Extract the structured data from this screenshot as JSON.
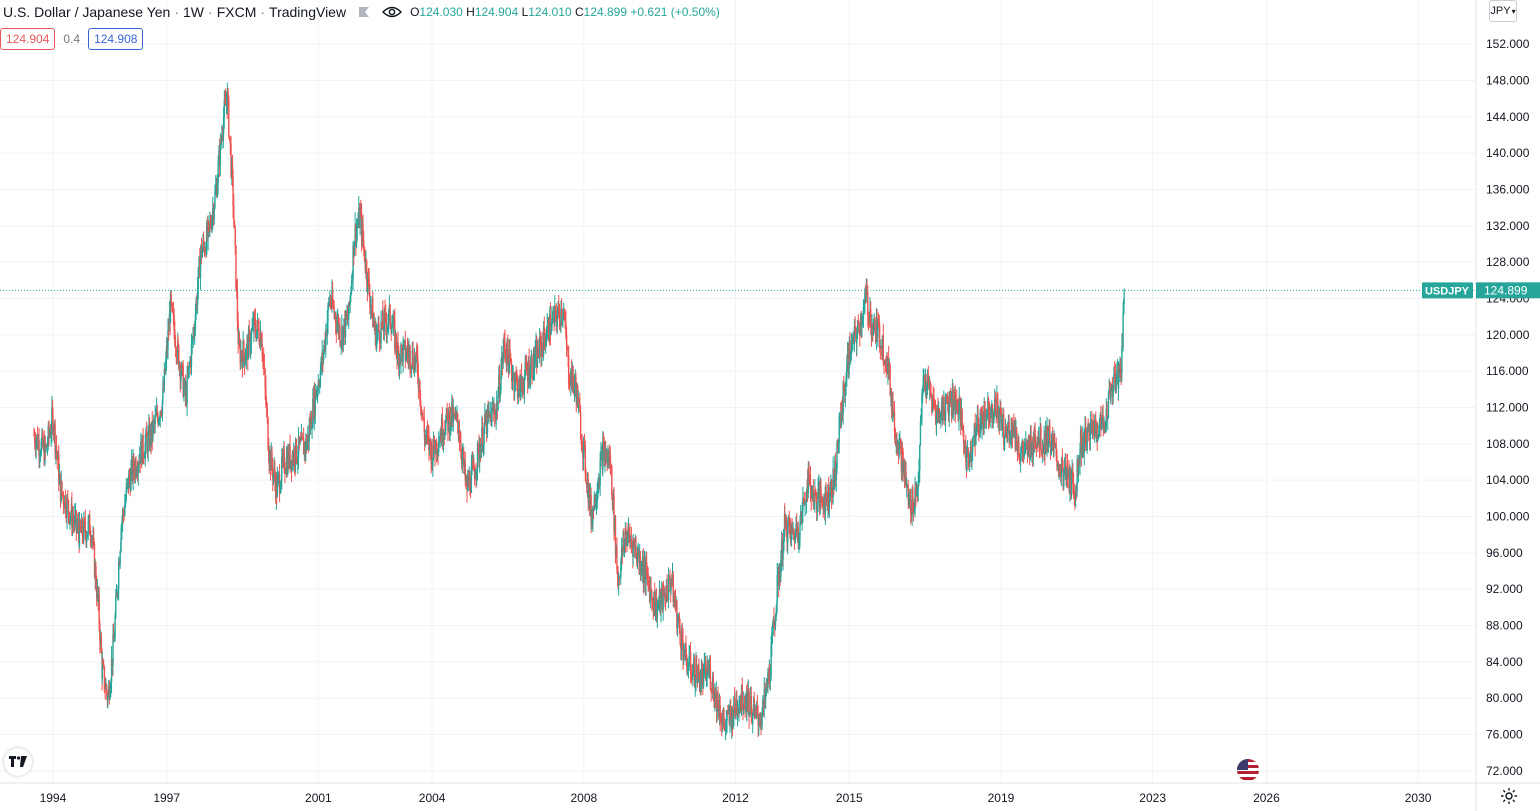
{
  "header": {
    "symbol": "U.S. Dollar / Japanese Yen",
    "interval": "1W",
    "exchange": "FXCM",
    "source": "TradingView",
    "ohlc": {
      "open_label": "O",
      "open": "124.030",
      "high_label": "H",
      "high": "124.904",
      "low_label": "L",
      "low": "124.010",
      "close_label": "C",
      "close": "124.899",
      "change": "+0.621 (+0.50%)"
    }
  },
  "quote": {
    "bid": "124.904",
    "spread": "0.4",
    "ask": "124.908"
  },
  "currency": "JPY",
  "last_price_tag": {
    "symbol": "USDJPY",
    "price": "124.899"
  },
  "colors": {
    "up": "#26a69a",
    "down": "#ef5350",
    "grid": "#f0f3fa",
    "tag_bg": "#26a69a"
  },
  "chart_data": {
    "type": "candlestick",
    "title": "U.S. Dollar / Japanese Yen",
    "interval": "1W",
    "x_ticks": [
      "1994",
      "1997",
      "2001",
      "2004",
      "2008",
      "2012",
      "2015",
      "2019",
      "2023",
      "2026",
      "2030"
    ],
    "y_ticks": [
      "72.000",
      "76.000",
      "80.000",
      "84.000",
      "88.000",
      "92.000",
      "96.000",
      "100.000",
      "104.000",
      "108.000",
      "112.000",
      "116.000",
      "120.000",
      "124.000",
      "128.000",
      "132.000",
      "136.000",
      "140.000",
      "144.000",
      "148.000",
      "152.000"
    ],
    "ylim": [
      70,
      154
    ],
    "xlim": [
      1993.0,
      2031.5
    ],
    "last_price": 124.899,
    "grid": true,
    "series": [
      {
        "name": "USDJPY",
        "points": [
          [
            1993.5,
            109
          ],
          [
            1993.8,
            107
          ],
          [
            1994.0,
            111
          ],
          [
            1994.2,
            103
          ],
          [
            1994.5,
            100
          ],
          [
            1994.7,
            98
          ],
          [
            1995.0,
            99
          ],
          [
            1995.2,
            90
          ],
          [
            1995.3,
            83
          ],
          [
            1995.45,
            80
          ],
          [
            1995.6,
            86
          ],
          [
            1995.8,
            99
          ],
          [
            1996.0,
            104
          ],
          [
            1996.3,
            107
          ],
          [
            1996.6,
            109
          ],
          [
            1996.9,
            113
          ],
          [
            1997.1,
            123
          ],
          [
            1997.3,
            118
          ],
          [
            1997.5,
            113
          ],
          [
            1997.7,
            120
          ],
          [
            1997.9,
            129
          ],
          [
            1998.1,
            131
          ],
          [
            1998.3,
            136
          ],
          [
            1998.5,
            144
          ],
          [
            1998.6,
            146
          ],
          [
            1998.75,
            135
          ],
          [
            1998.9,
            118
          ],
          [
            1999.1,
            118
          ],
          [
            1999.3,
            121
          ],
          [
            1999.5,
            120
          ],
          [
            1999.7,
            107
          ],
          [
            1999.9,
            103
          ],
          [
            2000.1,
            106
          ],
          [
            2000.4,
            107
          ],
          [
            2000.7,
            108
          ],
          [
            2000.9,
            113
          ],
          [
            2001.1,
            117
          ],
          [
            2001.3,
            124
          ],
          [
            2001.6,
            120
          ],
          [
            2001.8,
            122
          ],
          [
            2001.95,
            131
          ],
          [
            2002.1,
            133
          ],
          [
            2002.3,
            126
          ],
          [
            2002.5,
            120
          ],
          [
            2002.7,
            121
          ],
          [
            2002.9,
            122
          ],
          [
            2003.1,
            118
          ],
          [
            2003.4,
            118
          ],
          [
            2003.6,
            117
          ],
          [
            2003.8,
            109
          ],
          [
            2004.0,
            107
          ],
          [
            2004.3,
            110
          ],
          [
            2004.5,
            111
          ],
          [
            2004.7,
            110
          ],
          [
            2004.9,
            103
          ],
          [
            2005.1,
            105
          ],
          [
            2005.4,
            110
          ],
          [
            2005.7,
            112
          ],
          [
            2005.9,
            119
          ],
          [
            2006.1,
            116
          ],
          [
            2006.3,
            114
          ],
          [
            2006.5,
            116
          ],
          [
            2006.7,
            117
          ],
          [
            2006.9,
            119
          ],
          [
            2007.1,
            121
          ],
          [
            2007.3,
            122
          ],
          [
            2007.45,
            123
          ],
          [
            2007.6,
            116
          ],
          [
            2007.8,
            114
          ],
          [
            2008.0,
            107
          ],
          [
            2008.2,
            100
          ],
          [
            2008.5,
            107
          ],
          [
            2008.7,
            106
          ],
          [
            2008.9,
            93
          ],
          [
            2009.1,
            98
          ],
          [
            2009.3,
            97
          ],
          [
            2009.6,
            94
          ],
          [
            2009.9,
            90
          ],
          [
            2010.1,
            91
          ],
          [
            2010.3,
            93
          ],
          [
            2010.5,
            88
          ],
          [
            2010.7,
            84
          ],
          [
            2010.9,
            83
          ],
          [
            2011.1,
            82
          ],
          [
            2011.3,
            83
          ],
          [
            2011.5,
            80
          ],
          [
            2011.7,
            77
          ],
          [
            2011.9,
            78
          ],
          [
            2012.1,
            80
          ],
          [
            2012.3,
            80
          ],
          [
            2012.5,
            78
          ],
          [
            2012.7,
            78
          ],
          [
            2012.9,
            83
          ],
          [
            2013.1,
            92
          ],
          [
            2013.3,
            99
          ],
          [
            2013.5,
            98
          ],
          [
            2013.7,
            99
          ],
          [
            2013.9,
            104
          ],
          [
            2014.1,
            102
          ],
          [
            2014.4,
            102
          ],
          [
            2014.6,
            104
          ],
          [
            2014.8,
            112
          ],
          [
            2015.0,
            118
          ],
          [
            2015.2,
            120
          ],
          [
            2015.45,
            124
          ],
          [
            2015.6,
            121
          ],
          [
            2015.8,
            120
          ],
          [
            2016.0,
            117
          ],
          [
            2016.2,
            110
          ],
          [
            2016.4,
            106
          ],
          [
            2016.6,
            101
          ],
          [
            2016.8,
            103
          ],
          [
            2016.95,
            115
          ],
          [
            2017.1,
            114
          ],
          [
            2017.3,
            111
          ],
          [
            2017.5,
            112
          ],
          [
            2017.7,
            113
          ],
          [
            2017.9,
            112
          ],
          [
            2018.1,
            106
          ],
          [
            2018.3,
            109
          ],
          [
            2018.5,
            111
          ],
          [
            2018.7,
            112
          ],
          [
            2018.9,
            112
          ],
          [
            2019.1,
            109
          ],
          [
            2019.3,
            110
          ],
          [
            2019.5,
            107
          ],
          [
            2019.7,
            107
          ],
          [
            2019.9,
            109
          ],
          [
            2020.1,
            108
          ],
          [
            2020.25,
            109
          ],
          [
            2020.4,
            107
          ],
          [
            2020.6,
            105
          ],
          [
            2020.8,
            104
          ],
          [
            2020.95,
            103
          ],
          [
            2021.1,
            108
          ],
          [
            2021.3,
            109
          ],
          [
            2021.5,
            110
          ],
          [
            2021.7,
            110
          ],
          [
            2021.9,
            114
          ],
          [
            2022.0,
            115
          ],
          [
            2022.1,
            115
          ],
          [
            2022.17,
            117
          ],
          [
            2022.22,
            121
          ],
          [
            2022.25,
            124.899
          ]
        ]
      }
    ]
  }
}
